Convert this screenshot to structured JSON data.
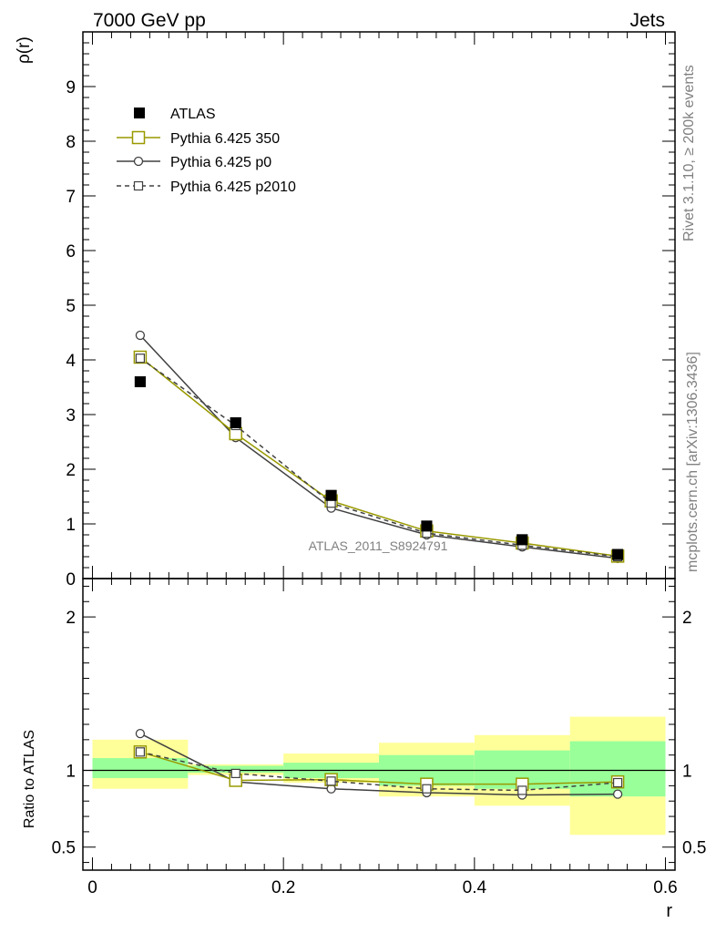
{
  "header": {
    "left": "7000 GeV pp",
    "right": "Jets"
  },
  "side_labels": {
    "rivet": "Rivet 3.1.10, ≥ 200k events",
    "mcplots": "mcplots.cern.ch [arXiv:1306.3436]"
  },
  "watermark": "ATLAS_2011_S8924791",
  "chart_data": [
    {
      "type": "line",
      "ylabel": "ρ(r)",
      "ylim": [
        0,
        10
      ],
      "y_ticks": [
        "0",
        "1",
        "2",
        "3",
        "4",
        "5",
        "6",
        "7",
        "8",
        "9"
      ],
      "xlim": [
        -0.01,
        0.61
      ],
      "legend_position": "top-left",
      "series": [
        {
          "name": "ATLAS",
          "style": "data",
          "color": "#000000",
          "x": [
            0.05,
            0.15,
            0.25,
            0.35,
            0.45,
            0.55
          ],
          "values": [
            3.6,
            2.85,
            1.52,
            0.96,
            0.71,
            0.44
          ]
        },
        {
          "name": "Pythia 6.425 350",
          "style": "big-square",
          "color": "#999900",
          "x": [
            0.05,
            0.15,
            0.25,
            0.35,
            0.45,
            0.55
          ],
          "values": [
            4.05,
            2.65,
            1.42,
            0.87,
            0.65,
            0.41
          ]
        },
        {
          "name": "Pythia 6.425 p0",
          "style": "circle",
          "color": "#404040",
          "x": [
            0.05,
            0.15,
            0.25,
            0.35,
            0.45,
            0.55
          ],
          "values": [
            4.45,
            2.58,
            1.29,
            0.8,
            0.58,
            0.37
          ]
        },
        {
          "name": "Pythia 6.425 p2010",
          "style": "small-square-dashed",
          "color": "#404040",
          "x": [
            0.05,
            0.15,
            0.25,
            0.35,
            0.45,
            0.55
          ],
          "values": [
            4.03,
            2.8,
            1.38,
            0.83,
            0.61,
            0.4
          ]
        }
      ]
    },
    {
      "type": "line",
      "ylabel": "Ratio to ATLAS",
      "xlabel": "r",
      "xlim": [
        -0.01,
        0.61
      ],
      "ylim": [
        0.35,
        2.25
      ],
      "y_ticks": [
        "0.5",
        "1",
        "2"
      ],
      "x_ticks": [
        "0",
        "0.2",
        "0.4",
        "0.6"
      ],
      "reference_line": 1,
      "bands": {
        "x_edges": [
          0.0,
          0.1,
          0.2,
          0.3,
          0.4,
          0.5,
          0.6
        ],
        "outer_color": "#ffff99",
        "inner_color": "#99ff99",
        "outer_low": [
          0.88,
          0.97,
          0.92,
          0.83,
          0.77,
          0.58
        ],
        "outer_high": [
          1.2,
          1.04,
          1.11,
          1.18,
          1.23,
          1.35
        ],
        "inner_low": [
          0.95,
          0.985,
          0.95,
          0.9,
          0.88,
          0.83
        ],
        "inner_high": [
          1.08,
          1.03,
          1.05,
          1.1,
          1.13,
          1.19
        ]
      },
      "series": [
        {
          "name": "Pythia 6.425 350",
          "style": "big-square",
          "color": "#999900",
          "x": [
            0.05,
            0.15,
            0.25,
            0.35,
            0.45,
            0.55
          ],
          "values": [
            1.12,
            0.935,
            0.94,
            0.91,
            0.91,
            0.925
          ]
        },
        {
          "name": "Pythia 6.425 p0",
          "style": "circle",
          "color": "#404040",
          "x": [
            0.05,
            0.15,
            0.25,
            0.35,
            0.45,
            0.55
          ],
          "values": [
            1.24,
            0.925,
            0.88,
            0.855,
            0.84,
            0.845
          ]
        },
        {
          "name": "Pythia 6.425 p2010",
          "style": "small-square-dashed",
          "color": "#404040",
          "x": [
            0.05,
            0.15,
            0.25,
            0.35,
            0.45,
            0.55
          ],
          "values": [
            1.12,
            0.98,
            0.93,
            0.88,
            0.87,
            0.92
          ]
        }
      ]
    }
  ]
}
